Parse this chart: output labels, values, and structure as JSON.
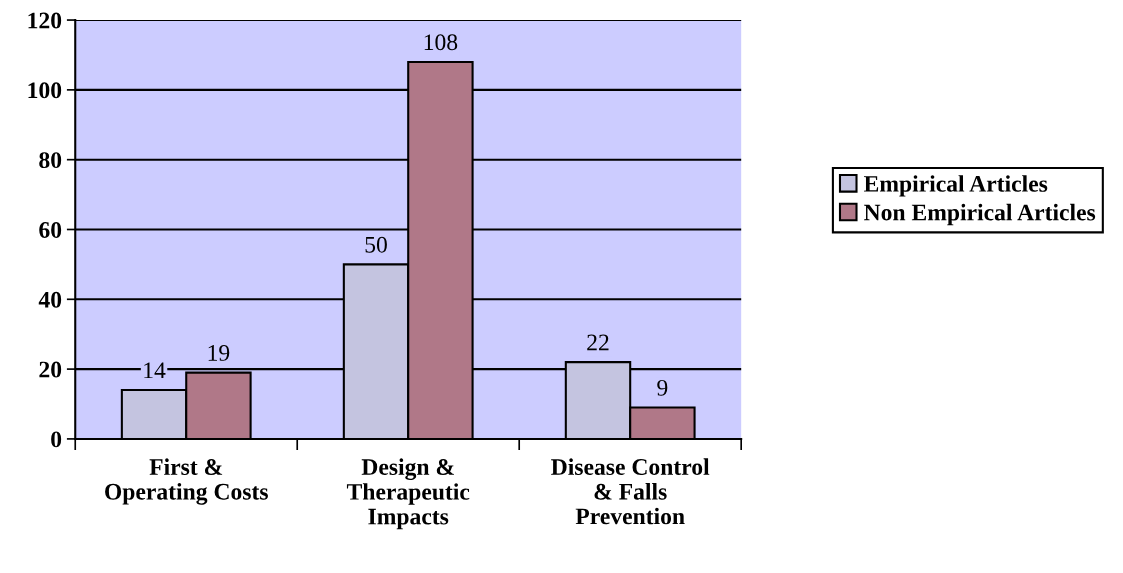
{
  "chart_data": {
    "type": "bar",
    "categories": [
      "First &\nOperating Costs",
      "Design &\nTherapeutic\nImpacts",
      "Disease Control\n& Falls\nPrevention"
    ],
    "series": [
      {
        "name": "Empirical Articles",
        "color": "#c4c4e0",
        "values": [
          14,
          50,
          22
        ]
      },
      {
        "name": "Non Empirical Articles",
        "color": "#b07888",
        "values": [
          19,
          108,
          9
        ]
      }
    ],
    "ylim": [
      0,
      120
    ],
    "yticks": [
      0,
      20,
      40,
      60,
      80,
      100,
      120
    ],
    "grid": "y",
    "legend": "right",
    "data_labels": true
  }
}
